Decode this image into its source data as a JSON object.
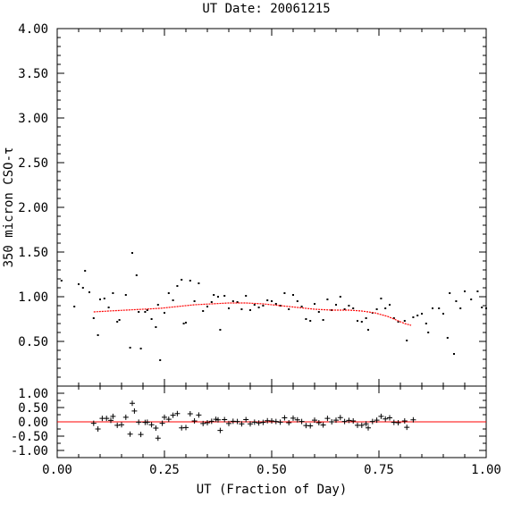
{
  "chart_data": [
    {
      "type": "scatter",
      "title": "UT Date: 20061215",
      "ylabel": "350 micron CSO-τ",
      "xlim": [
        0,
        1
      ],
      "ylim": [
        0,
        4
      ],
      "y_ticks": [
        "0.50",
        "1.00",
        "1.50",
        "2.00",
        "2.50",
        "3.00",
        "3.50",
        "4.00"
      ],
      "y_tick_values": [
        0.5,
        1.0,
        1.5,
        2.0,
        2.5,
        3.0,
        3.5,
        4.0
      ],
      "points_color": "#000000",
      "fit_color": "#ff0000",
      "points": [
        [
          0.01,
          1.18
        ],
        [
          0.04,
          0.89
        ],
        [
          0.05,
          1.14
        ],
        [
          0.06,
          1.1
        ],
        [
          0.065,
          1.29
        ],
        [
          0.075,
          1.05
        ],
        [
          0.085,
          0.76
        ],
        [
          0.095,
          0.57
        ],
        [
          0.1,
          0.97
        ],
        [
          0.11,
          0.98
        ],
        [
          0.12,
          0.88
        ],
        [
          0.13,
          1.04
        ],
        [
          0.14,
          0.72
        ],
        [
          0.145,
          0.74
        ],
        [
          0.16,
          1.02
        ],
        [
          0.17,
          0.43
        ],
        [
          0.175,
          1.49
        ],
        [
          0.185,
          1.24
        ],
        [
          0.19,
          0.83
        ],
        [
          0.195,
          0.42
        ],
        [
          0.205,
          0.83
        ],
        [
          0.21,
          0.85
        ],
        [
          0.22,
          0.75
        ],
        [
          0.23,
          0.66
        ],
        [
          0.235,
          0.91
        ],
        [
          0.24,
          0.29
        ],
        [
          0.25,
          0.82
        ],
        [
          0.26,
          1.04
        ],
        [
          0.27,
          0.96
        ],
        [
          0.28,
          1.12
        ],
        [
          0.29,
          1.19
        ],
        [
          0.295,
          0.7
        ],
        [
          0.3,
          0.71
        ],
        [
          0.31,
          1.18
        ],
        [
          0.32,
          0.95
        ],
        [
          0.33,
          1.15
        ],
        [
          0.34,
          0.84
        ],
        [
          0.35,
          0.89
        ],
        [
          0.36,
          0.94
        ],
        [
          0.365,
          1.02
        ],
        [
          0.375,
          1.0
        ],
        [
          0.38,
          0.63
        ],
        [
          0.39,
          1.01
        ],
        [
          0.4,
          0.87
        ],
        [
          0.41,
          0.95
        ],
        [
          0.42,
          0.94
        ],
        [
          0.43,
          0.86
        ],
        [
          0.44,
          1.01
        ],
        [
          0.45,
          0.85
        ],
        [
          0.46,
          0.91
        ],
        [
          0.47,
          0.88
        ],
        [
          0.48,
          0.9
        ],
        [
          0.49,
          0.96
        ],
        [
          0.5,
          0.95
        ],
        [
          0.51,
          0.92
        ],
        [
          0.52,
          0.9
        ],
        [
          0.53,
          1.04
        ],
        [
          0.54,
          0.86
        ],
        [
          0.55,
          1.02
        ],
        [
          0.56,
          0.95
        ],
        [
          0.57,
          0.89
        ],
        [
          0.58,
          0.75
        ],
        [
          0.59,
          0.73
        ],
        [
          0.6,
          0.92
        ],
        [
          0.61,
          0.83
        ],
        [
          0.62,
          0.74
        ],
        [
          0.63,
          0.97
        ],
        [
          0.64,
          0.85
        ],
        [
          0.65,
          0.91
        ],
        [
          0.66,
          1.0
        ],
        [
          0.67,
          0.86
        ],
        [
          0.68,
          0.9
        ],
        [
          0.69,
          0.87
        ],
        [
          0.7,
          0.73
        ],
        [
          0.71,
          0.72
        ],
        [
          0.72,
          0.76
        ],
        [
          0.725,
          0.63
        ],
        [
          0.735,
          0.82
        ],
        [
          0.745,
          0.86
        ],
        [
          0.755,
          0.98
        ],
        [
          0.765,
          0.87
        ],
        [
          0.775,
          0.91
        ],
        [
          0.785,
          0.76
        ],
        [
          0.795,
          0.72
        ],
        [
          0.81,
          0.73
        ],
        [
          0.815,
          0.51
        ],
        [
          0.83,
          0.77
        ],
        [
          0.84,
          0.79
        ],
        [
          0.85,
          0.81
        ],
        [
          0.86,
          0.7
        ],
        [
          0.865,
          0.6
        ],
        [
          0.875,
          0.87
        ],
        [
          0.89,
          0.87
        ],
        [
          0.9,
          0.81
        ],
        [
          0.91,
          0.54
        ],
        [
          0.915,
          1.04
        ],
        [
          0.925,
          0.36
        ],
        [
          0.93,
          0.95
        ],
        [
          0.94,
          0.87
        ],
        [
          0.95,
          1.06
        ],
        [
          0.965,
          0.97
        ],
        [
          0.98,
          1.06
        ],
        [
          0.99,
          0.88
        ],
        [
          1.0,
          0.87
        ]
      ],
      "fit_curve": [
        [
          0.085,
          0.83
        ],
        [
          0.12,
          0.84
        ],
        [
          0.16,
          0.85
        ],
        [
          0.2,
          0.86
        ],
        [
          0.24,
          0.87
        ],
        [
          0.28,
          0.89
        ],
        [
          0.32,
          0.91
        ],
        [
          0.36,
          0.92
        ],
        [
          0.4,
          0.93
        ],
        [
          0.44,
          0.93
        ],
        [
          0.48,
          0.92
        ],
        [
          0.52,
          0.9
        ],
        [
          0.56,
          0.88
        ],
        [
          0.6,
          0.86
        ],
        [
          0.64,
          0.85
        ],
        [
          0.68,
          0.85
        ],
        [
          0.71,
          0.84
        ],
        [
          0.74,
          0.82
        ],
        [
          0.77,
          0.78
        ],
        [
          0.79,
          0.74
        ],
        [
          0.81,
          0.7
        ],
        [
          0.825,
          0.68
        ]
      ]
    },
    {
      "type": "scatter",
      "xlabel": "UT (Fraction of Day)",
      "xlim": [
        0,
        1
      ],
      "ylim": [
        -1.25,
        1.25
      ],
      "x_ticks": [
        "0.00",
        "0.25",
        "0.50",
        "0.75",
        "1.00"
      ],
      "x_tick_values": [
        0,
        0.25,
        0.5,
        0.75,
        1.0
      ],
      "y_ticks": [
        "-1.00",
        "-0.50",
        "0.00",
        "0.50",
        "1.00"
      ],
      "y_tick_values": [
        -1.0,
        -0.5,
        0.0,
        0.5,
        1.0
      ],
      "zero_line_color": "#ff0000",
      "residuals": [
        [
          0.085,
          -0.05
        ],
        [
          0.095,
          -0.25
        ],
        [
          0.105,
          0.12
        ],
        [
          0.115,
          0.12
        ],
        [
          0.125,
          0.05
        ],
        [
          0.13,
          0.19
        ],
        [
          0.14,
          -0.12
        ],
        [
          0.15,
          -0.1
        ],
        [
          0.16,
          0.16
        ],
        [
          0.17,
          -0.43
        ],
        [
          0.175,
          0.65
        ],
        [
          0.18,
          0.38
        ],
        [
          0.19,
          -0.01
        ],
        [
          0.195,
          -0.44
        ],
        [
          0.205,
          -0.02
        ],
        [
          0.21,
          -0.01
        ],
        [
          0.22,
          -0.1
        ],
        [
          0.23,
          -0.22
        ],
        [
          0.235,
          -0.57
        ],
        [
          0.245,
          -0.05
        ],
        [
          0.25,
          0.16
        ],
        [
          0.26,
          0.09
        ],
        [
          0.27,
          0.23
        ],
        [
          0.28,
          0.29
        ],
        [
          0.29,
          -0.21
        ],
        [
          0.3,
          -0.2
        ],
        [
          0.31,
          0.28
        ],
        [
          0.32,
          0.03
        ],
        [
          0.33,
          0.24
        ],
        [
          0.34,
          -0.06
        ],
        [
          0.35,
          -0.03
        ],
        [
          0.36,
          0.02
        ],
        [
          0.37,
          0.09
        ],
        [
          0.375,
          0.07
        ],
        [
          0.38,
          -0.3
        ],
        [
          0.39,
          0.08
        ],
        [
          0.4,
          -0.06
        ],
        [
          0.41,
          0.02
        ],
        [
          0.42,
          0.01
        ],
        [
          0.43,
          -0.07
        ],
        [
          0.44,
          0.08
        ],
        [
          0.45,
          -0.07
        ],
        [
          0.46,
          -0.01
        ],
        [
          0.47,
          -0.04
        ],
        [
          0.48,
          -0.02
        ],
        [
          0.49,
          0.04
        ],
        [
          0.5,
          0.03
        ],
        [
          0.51,
          0.01
        ],
        [
          0.52,
          -0.01
        ],
        [
          0.53,
          0.14
        ],
        [
          0.54,
          -0.03
        ],
        [
          0.55,
          0.13
        ],
        [
          0.56,
          0.07
        ],
        [
          0.57,
          0.01
        ],
        [
          0.58,
          -0.13
        ],
        [
          0.59,
          -0.14
        ],
        [
          0.6,
          0.06
        ],
        [
          0.61,
          -0.03
        ],
        [
          0.62,
          -0.11
        ],
        [
          0.63,
          0.12
        ],
        [
          0.64,
          0.0
        ],
        [
          0.65,
          0.06
        ],
        [
          0.66,
          0.15
        ],
        [
          0.67,
          0.01
        ],
        [
          0.68,
          0.05
        ],
        [
          0.69,
          0.03
        ],
        [
          0.7,
          -0.12
        ],
        [
          0.71,
          -0.12
        ],
        [
          0.72,
          -0.07
        ],
        [
          0.725,
          -0.21
        ],
        [
          0.735,
          0.01
        ],
        [
          0.745,
          0.06
        ],
        [
          0.755,
          0.19
        ],
        [
          0.765,
          0.1
        ],
        [
          0.775,
          0.14
        ],
        [
          0.785,
          -0.02
        ],
        [
          0.795,
          -0.03
        ],
        [
          0.81,
          0.03
        ],
        [
          0.815,
          -0.19
        ],
        [
          0.83,
          0.07
        ]
      ]
    }
  ]
}
